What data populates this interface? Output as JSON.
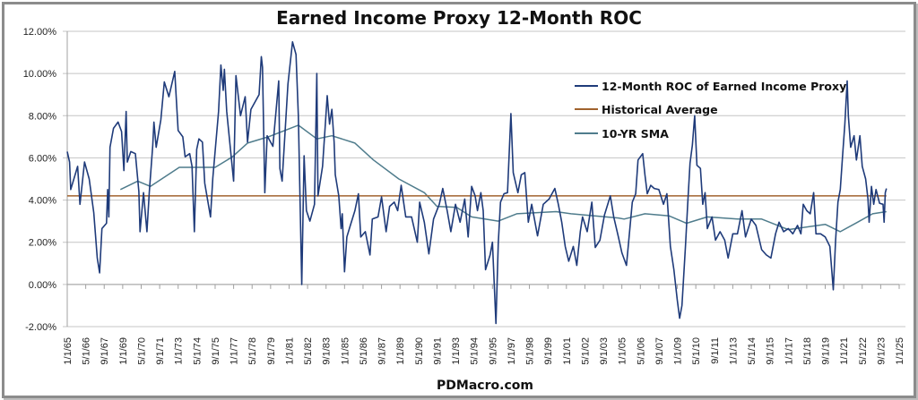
{
  "chart_data": {
    "type": "line",
    "title": "Earned Income Proxy 12-Month ROC",
    "footer": "PDMacro.com",
    "ylim": [
      -2,
      12
    ],
    "y_ticks": [
      "-2.00%",
      "0.00%",
      "2.00%",
      "4.00%",
      "6.00%",
      "8.00%",
      "10.00%",
      "12.00%"
    ],
    "y_tick_values": [
      -2,
      0,
      2,
      4,
      6,
      8,
      10,
      12
    ],
    "x_ticks": [
      "1/1/65",
      "5/1/66",
      "9/1/67",
      "1/1/69",
      "5/1/70",
      "9/1/71",
      "1/1/73",
      "5/1/74",
      "9/1/75",
      "1/1/77",
      "5/1/78",
      "9/1/79",
      "1/1/81",
      "5/1/82",
      "9/1/83",
      "1/1/85",
      "5/1/86",
      "9/1/87",
      "1/1/89",
      "5/1/90",
      "9/1/91",
      "1/1/93",
      "5/1/94",
      "9/1/95",
      "1/1/97",
      "5/1/98",
      "9/1/99",
      "1/1/01",
      "5/1/02",
      "9/1/03",
      "1/1/05",
      "5/1/06",
      "9/1/07",
      "1/1/09",
      "5/1/10",
      "9/1/11",
      "1/1/13",
      "5/1/14",
      "9/1/15",
      "1/1/17",
      "5/1/18",
      "9/1/19",
      "1/1/21",
      "5/1/22",
      "9/1/23",
      "1/1/25"
    ],
    "xlim": [
      "1965-01",
      "2025-01"
    ],
    "grid": true,
    "legend_placement": "top-right",
    "series": [
      {
        "name": "12-Month ROC of Earned Income Proxy",
        "color": "#1f3b7a",
        "points": [
          [
            "1965-01",
            6.3
          ],
          [
            "1965-03",
            5.8
          ],
          [
            "1965-04",
            4.5
          ],
          [
            "1965-10",
            5.6
          ],
          [
            "1965-12",
            3.8
          ],
          [
            "1966-04",
            5.8
          ],
          [
            "1966-08",
            5.0
          ],
          [
            "1966-12",
            3.4
          ],
          [
            "1967-03",
            1.25
          ],
          [
            "1967-05",
            0.55
          ],
          [
            "1967-07",
            2.65
          ],
          [
            "1967-11",
            2.9
          ],
          [
            "1967-12",
            4.5
          ],
          [
            "1968-01",
            3.2
          ],
          [
            "1968-02",
            6.5
          ],
          [
            "1968-05",
            7.4
          ],
          [
            "1968-09",
            7.7
          ],
          [
            "1968-12",
            7.25
          ],
          [
            "1969-02",
            5.4
          ],
          [
            "1969-04",
            8.2
          ],
          [
            "1969-05",
            5.8
          ],
          [
            "1969-08",
            6.3
          ],
          [
            "1969-12",
            6.2
          ],
          [
            "1970-03",
            4.4
          ],
          [
            "1970-04",
            2.5
          ],
          [
            "1970-07",
            4.35
          ],
          [
            "1970-10",
            2.5
          ],
          [
            "1970-12",
            4.35
          ],
          [
            "1971-03",
            6.6
          ],
          [
            "1971-04",
            7.7
          ],
          [
            "1971-06",
            6.5
          ],
          [
            "1971-10",
            7.8
          ],
          [
            "1972-01",
            9.6
          ],
          [
            "1972-05",
            8.9
          ],
          [
            "1972-10",
            10.1
          ],
          [
            "1973-01",
            7.3
          ],
          [
            "1973-05",
            7.0
          ],
          [
            "1973-07",
            6.05
          ],
          [
            "1973-11",
            6.2
          ],
          [
            "1974-01",
            5.6
          ],
          [
            "1974-03",
            2.5
          ],
          [
            "1974-05",
            6.4
          ],
          [
            "1974-07",
            6.9
          ],
          [
            "1974-10",
            6.75
          ],
          [
            "1974-12",
            4.8
          ],
          [
            "1975-05",
            3.2
          ],
          [
            "1975-07",
            5.05
          ],
          [
            "1975-12",
            8.2
          ],
          [
            "1976-02",
            10.4
          ],
          [
            "1976-04",
            9.2
          ],
          [
            "1976-05",
            10.2
          ],
          [
            "1976-07",
            8.2
          ],
          [
            "1977-01",
            4.9
          ],
          [
            "1977-03",
            9.9
          ],
          [
            "1977-07",
            8.0
          ],
          [
            "1977-11",
            8.9
          ],
          [
            "1978-01",
            6.75
          ],
          [
            "1978-04",
            8.3
          ],
          [
            "1978-11",
            9.0
          ],
          [
            "1979-01",
            10.8
          ],
          [
            "1979-02",
            10.3
          ],
          [
            "1979-04",
            4.35
          ],
          [
            "1979-06",
            7.05
          ],
          [
            "1979-11",
            6.55
          ],
          [
            "1980-04",
            9.65
          ],
          [
            "1980-05",
            5.5
          ],
          [
            "1980-07",
            4.9
          ],
          [
            "1980-12",
            9.5
          ],
          [
            "1981-04",
            11.5
          ],
          [
            "1981-07",
            10.9
          ],
          [
            "1981-09",
            8.0
          ],
          [
            "1981-12",
            0.0
          ],
          [
            "1982-02",
            6.1
          ],
          [
            "1982-04",
            3.5
          ],
          [
            "1982-07",
            3.0
          ],
          [
            "1982-11",
            3.8
          ],
          [
            "1983-01",
            10.0
          ],
          [
            "1983-02",
            4.2
          ],
          [
            "1983-06",
            5.6
          ],
          [
            "1983-10",
            8.95
          ],
          [
            "1983-12",
            7.6
          ],
          [
            "1984-02",
            8.3
          ],
          [
            "1984-04",
            6.75
          ],
          [
            "1984-05",
            5.2
          ],
          [
            "1984-08",
            4.2
          ],
          [
            "1984-10",
            2.65
          ],
          [
            "1984-11",
            3.35
          ],
          [
            "1985-01",
            0.6
          ],
          [
            "1985-03",
            2.25
          ],
          [
            "1985-06",
            2.8
          ],
          [
            "1985-10",
            3.5
          ],
          [
            "1986-01",
            4.3
          ],
          [
            "1986-03",
            2.25
          ],
          [
            "1986-07",
            2.5
          ],
          [
            "1986-11",
            1.4
          ],
          [
            "1987-01",
            3.1
          ],
          [
            "1987-06",
            3.2
          ],
          [
            "1987-09",
            4.15
          ],
          [
            "1988-01",
            2.5
          ],
          [
            "1988-04",
            3.7
          ],
          [
            "1988-08",
            3.9
          ],
          [
            "1988-11",
            3.5
          ],
          [
            "1989-02",
            4.7
          ],
          [
            "1989-06",
            3.2
          ],
          [
            "1989-11",
            3.2
          ],
          [
            "1990-04",
            2.0
          ],
          [
            "1990-06",
            3.9
          ],
          [
            "1990-10",
            2.95
          ],
          [
            "1991-02",
            1.45
          ],
          [
            "1991-06",
            3.1
          ],
          [
            "1991-11",
            3.8
          ],
          [
            "1992-02",
            4.55
          ],
          [
            "1992-06",
            3.45
          ],
          [
            "1992-09",
            2.5
          ],
          [
            "1993-01",
            3.8
          ],
          [
            "1993-05",
            2.95
          ],
          [
            "1993-09",
            4.05
          ],
          [
            "1993-12",
            2.25
          ],
          [
            "1994-03",
            4.65
          ],
          [
            "1994-06",
            4.2
          ],
          [
            "1994-08",
            3.5
          ],
          [
            "1994-11",
            4.35
          ],
          [
            "1995-01",
            3.5
          ],
          [
            "1995-03",
            0.7
          ],
          [
            "1995-07",
            1.4
          ],
          [
            "1995-09",
            2.0
          ],
          [
            "1995-12",
            -1.85
          ],
          [
            "1996-02",
            1.95
          ],
          [
            "1996-04",
            3.9
          ],
          [
            "1996-07",
            4.3
          ],
          [
            "1996-10",
            4.35
          ],
          [
            "1997-01",
            8.1
          ],
          [
            "1997-03",
            5.3
          ],
          [
            "1997-07",
            4.35
          ],
          [
            "1997-10",
            5.2
          ],
          [
            "1998-01",
            5.3
          ],
          [
            "1998-04",
            2.95
          ],
          [
            "1998-07",
            3.8
          ],
          [
            "1998-12",
            2.3
          ],
          [
            "1999-05",
            3.8
          ],
          [
            "1999-10",
            4.05
          ],
          [
            "2000-03",
            4.55
          ],
          [
            "2000-06",
            3.8
          ],
          [
            "2000-09",
            2.95
          ],
          [
            "2000-12",
            1.8
          ],
          [
            "2001-03",
            1.1
          ],
          [
            "2001-07",
            1.8
          ],
          [
            "2001-10",
            0.9
          ],
          [
            "2002-01",
            2.5
          ],
          [
            "2002-03",
            3.2
          ],
          [
            "2002-07",
            2.5
          ],
          [
            "2002-11",
            3.9
          ],
          [
            "2003-02",
            1.75
          ],
          [
            "2003-06",
            2.1
          ],
          [
            "2003-10",
            3.3
          ],
          [
            "2004-03",
            4.2
          ],
          [
            "2004-06",
            3.2
          ],
          [
            "2004-10",
            2.25
          ],
          [
            "2005-01",
            1.5
          ],
          [
            "2005-05",
            0.9
          ],
          [
            "2005-07",
            2.1
          ],
          [
            "2005-10",
            3.9
          ],
          [
            "2006-01",
            4.3
          ],
          [
            "2006-03",
            5.9
          ],
          [
            "2006-07",
            6.2
          ],
          [
            "2006-09",
            5.2
          ],
          [
            "2006-11",
            4.3
          ],
          [
            "2007-02",
            4.7
          ],
          [
            "2007-05",
            4.55
          ],
          [
            "2007-09",
            4.5
          ],
          [
            "2008-01",
            3.8
          ],
          [
            "2008-04",
            4.3
          ],
          [
            "2008-07",
            1.8
          ],
          [
            "2008-10",
            0.7
          ],
          [
            "2009-01",
            -0.75
          ],
          [
            "2009-03",
            -1.6
          ],
          [
            "2009-05",
            -1.0
          ],
          [
            "2009-08",
            1.8
          ],
          [
            "2009-10",
            3.8
          ],
          [
            "2009-12",
            5.75
          ],
          [
            "2010-02",
            6.6
          ],
          [
            "2010-04",
            8.0
          ],
          [
            "2010-06",
            5.65
          ],
          [
            "2010-09",
            5.5
          ],
          [
            "2010-11",
            3.8
          ],
          [
            "2011-01",
            4.35
          ],
          [
            "2011-03",
            2.65
          ],
          [
            "2011-07",
            3.2
          ],
          [
            "2011-10",
            2.1
          ],
          [
            "2012-02",
            2.5
          ],
          [
            "2012-06",
            2.1
          ],
          [
            "2012-09",
            1.25
          ],
          [
            "2013-01",
            2.4
          ],
          [
            "2013-05",
            2.4
          ],
          [
            "2013-09",
            3.5
          ],
          [
            "2013-12",
            2.25
          ],
          [
            "2014-05",
            3.1
          ],
          [
            "2014-09",
            2.8
          ],
          [
            "2015-02",
            1.65
          ],
          [
            "2015-06",
            1.4
          ],
          [
            "2015-10",
            1.25
          ],
          [
            "2016-02",
            2.4
          ],
          [
            "2016-05",
            2.95
          ],
          [
            "2016-09",
            2.5
          ],
          [
            "2017-01",
            2.65
          ],
          [
            "2017-05",
            2.4
          ],
          [
            "2017-09",
            2.8
          ],
          [
            "2017-12",
            2.4
          ],
          [
            "2018-02",
            3.8
          ],
          [
            "2018-05",
            3.5
          ],
          [
            "2018-08",
            3.35
          ],
          [
            "2018-11",
            4.35
          ],
          [
            "2019-01",
            2.4
          ],
          [
            "2019-05",
            2.4
          ],
          [
            "2019-09",
            2.25
          ],
          [
            "2020-01",
            1.8
          ],
          [
            "2020-02",
            1.1
          ],
          [
            "2020-04",
            -0.25
          ],
          [
            "2020-06",
            2.1
          ],
          [
            "2020-08",
            3.9
          ],
          [
            "2020-10",
            4.5
          ],
          [
            "2020-12",
            6.05
          ],
          [
            "2021-02",
            7.6
          ],
          [
            "2021-04",
            9.65
          ],
          [
            "2021-05",
            8.0
          ],
          [
            "2021-07",
            6.5
          ],
          [
            "2021-10",
            7.05
          ],
          [
            "2021-12",
            5.9
          ],
          [
            "2022-03",
            7.05
          ],
          [
            "2022-05",
            5.6
          ],
          [
            "2022-08",
            5.0
          ],
          [
            "2022-10",
            4.05
          ],
          [
            "2022-11",
            2.95
          ],
          [
            "2023-01",
            4.65
          ],
          [
            "2023-03",
            3.8
          ],
          [
            "2023-05",
            4.5
          ],
          [
            "2023-08",
            3.85
          ],
          [
            "2023-11",
            3.8
          ],
          [
            "2023-12",
            2.95
          ],
          [
            "2024-01",
            4.35
          ],
          [
            "2024-02",
            4.55
          ]
        ]
      },
      {
        "name": "Historical Average",
        "color": "#a0622d",
        "points": [
          [
            "1965-01",
            4.2
          ],
          [
            "2024-02",
            4.2
          ]
        ]
      },
      {
        "name": "10-YR SMA",
        "color": "#4f7c8c",
        "points": [
          [
            "1968-11",
            4.5
          ],
          [
            "1970-02",
            4.9
          ],
          [
            "1971-01",
            4.65
          ],
          [
            "1973-02",
            5.55
          ],
          [
            "1975-09",
            5.55
          ],
          [
            "1976-12",
            6.05
          ],
          [
            "1978-01",
            6.7
          ],
          [
            "1979-07",
            7.0
          ],
          [
            "1981-09",
            7.55
          ],
          [
            "1983-01",
            6.9
          ],
          [
            "1984-02",
            7.05
          ],
          [
            "1985-10",
            6.7
          ],
          [
            "1987-02",
            5.9
          ],
          [
            "1988-12",
            5.0
          ],
          [
            "1990-10",
            4.35
          ],
          [
            "1991-09",
            3.7
          ],
          [
            "1993-02",
            3.65
          ],
          [
            "1994-03",
            3.2
          ],
          [
            "1996-02",
            3.0
          ],
          [
            "1997-06",
            3.35
          ],
          [
            "2000-04",
            3.45
          ],
          [
            "2001-05",
            3.35
          ],
          [
            "2004-10",
            3.15
          ],
          [
            "2005-03",
            3.1
          ],
          [
            "2006-09",
            3.35
          ],
          [
            "2008-06",
            3.25
          ],
          [
            "2009-09",
            2.9
          ],
          [
            "2011-03",
            3.2
          ],
          [
            "2013-05",
            3.1
          ],
          [
            "2015-02",
            3.1
          ],
          [
            "2017-01",
            2.6
          ],
          [
            "2019-09",
            2.85
          ],
          [
            "2020-10",
            2.5
          ],
          [
            "2022-01",
            2.95
          ],
          [
            "2023-02",
            3.35
          ],
          [
            "2024-02",
            3.45
          ]
        ]
      }
    ]
  }
}
